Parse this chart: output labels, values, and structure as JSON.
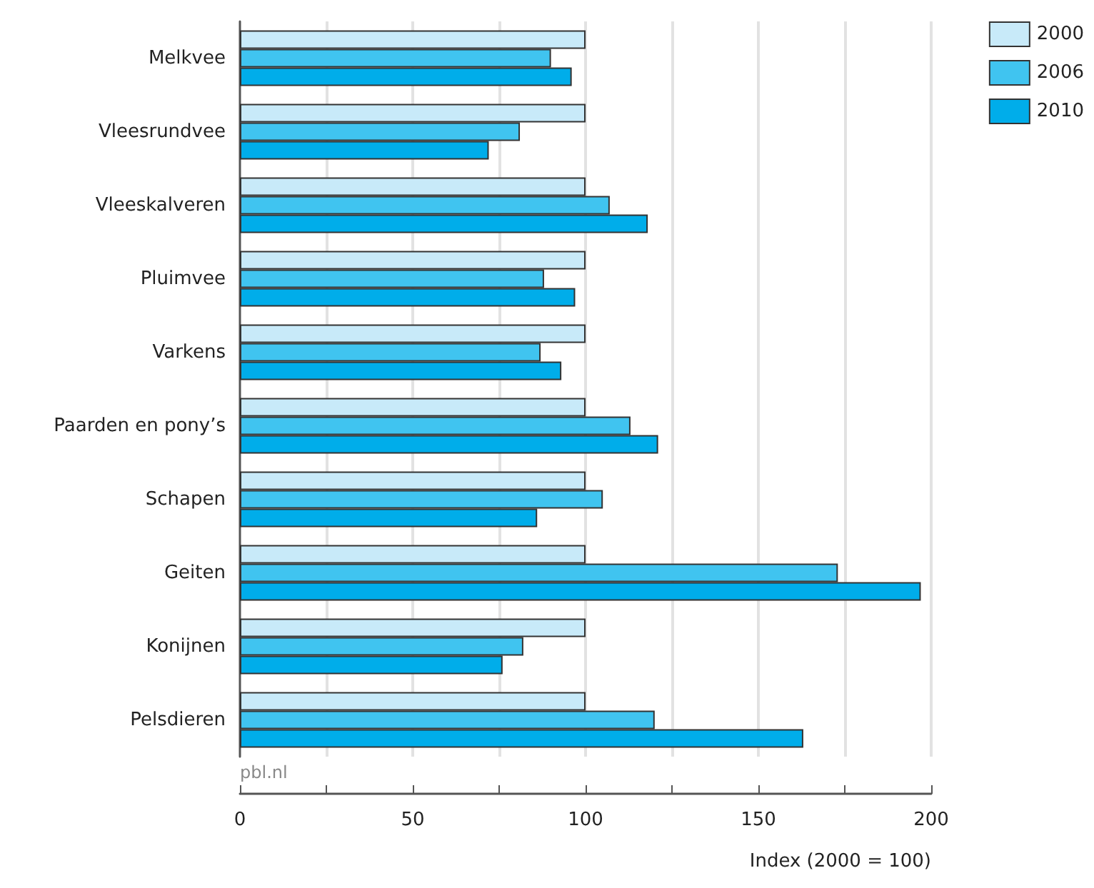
{
  "chart_data": {
    "type": "bar",
    "orientation": "horizontal",
    "xlabel": "Index (2000 = 100)",
    "annotations": [
      "pbl.nl"
    ],
    "categories": [
      "Melkvee",
      "Vleesrundvee",
      "Vleeskalveren",
      "Pluimvee",
      "Varkens",
      "Paarden en pony’s",
      "Schapen",
      "Geiten",
      "Konijnen",
      "Pelsdieren"
    ],
    "series": [
      {
        "name": "2000",
        "color": "#c8eaf9",
        "values": [
          100,
          100,
          100,
          100,
          100,
          100,
          100,
          100,
          100,
          100
        ]
      },
      {
        "name": "2006",
        "color": "#40c4f0",
        "values": [
          90,
          81,
          107,
          88,
          87,
          113,
          105,
          173,
          82,
          120
        ]
      },
      {
        "name": "2010",
        "color": "#00adea",
        "values": [
          96,
          72,
          118,
          97,
          93,
          121,
          86,
          197,
          76,
          163
        ]
      }
    ],
    "xlim": [
      0,
      200
    ],
    "xticks": [
      0,
      {
        "value": 25,
        "label": null
      },
      50,
      {
        "value": 75,
        "label": null
      },
      100,
      {
        "value": 125,
        "label": null
      },
      150,
      {
        "value": 175,
        "label": null
      },
      200
    ],
    "grid": "x",
    "legend": "top right"
  }
}
